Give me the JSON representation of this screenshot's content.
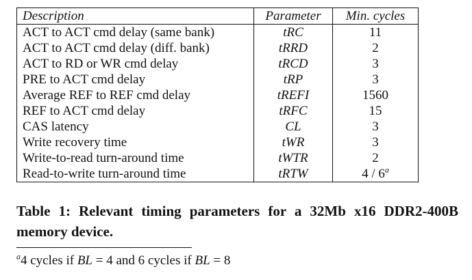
{
  "table": {
    "headers": [
      "Description",
      "Parameter",
      "Min. cycles"
    ],
    "rows": [
      {
        "description": "ACT to ACT cmd delay (same bank)",
        "parameter": "tRC",
        "cycles": "11"
      },
      {
        "description": "ACT to ACT cmd delay (diff. bank)",
        "parameter": "tRRD",
        "cycles": "2"
      },
      {
        "description": "ACT to RD or WR cmd delay",
        "parameter": "tRCD",
        "cycles": "3"
      },
      {
        "description": "PRE to ACT cmd delay",
        "parameter": "tRP",
        "cycles": "3"
      },
      {
        "description": "Average REF to REF cmd delay",
        "parameter": "tREFI",
        "cycles": "1560"
      },
      {
        "description": "REF to ACT cmd delay",
        "parameter": "tRFC",
        "cycles": "15"
      },
      {
        "description": "CAS latency",
        "parameter": "CL",
        "cycles": "3"
      },
      {
        "description": "Write recovery time",
        "parameter": "tWR",
        "cycles": "3"
      },
      {
        "description": "Write-to-read turn-around time",
        "parameter": "tWTR",
        "cycles": "2"
      },
      {
        "description": "Read-to-write turn-around time",
        "parameter": "tRTW",
        "cycles": "4 / 6",
        "cycles_note": "a"
      }
    ]
  },
  "caption": "Table 1: Relevant timing parameters for a 32Mb x16 DDR2-400B memory device.",
  "footnote": {
    "marker": "a",
    "text_1": "4 cycles if ",
    "var_1": "BL",
    "eq_1": " = 4 and 6 cycles if ",
    "var_2": "BL",
    "eq_2": " = 8"
  }
}
